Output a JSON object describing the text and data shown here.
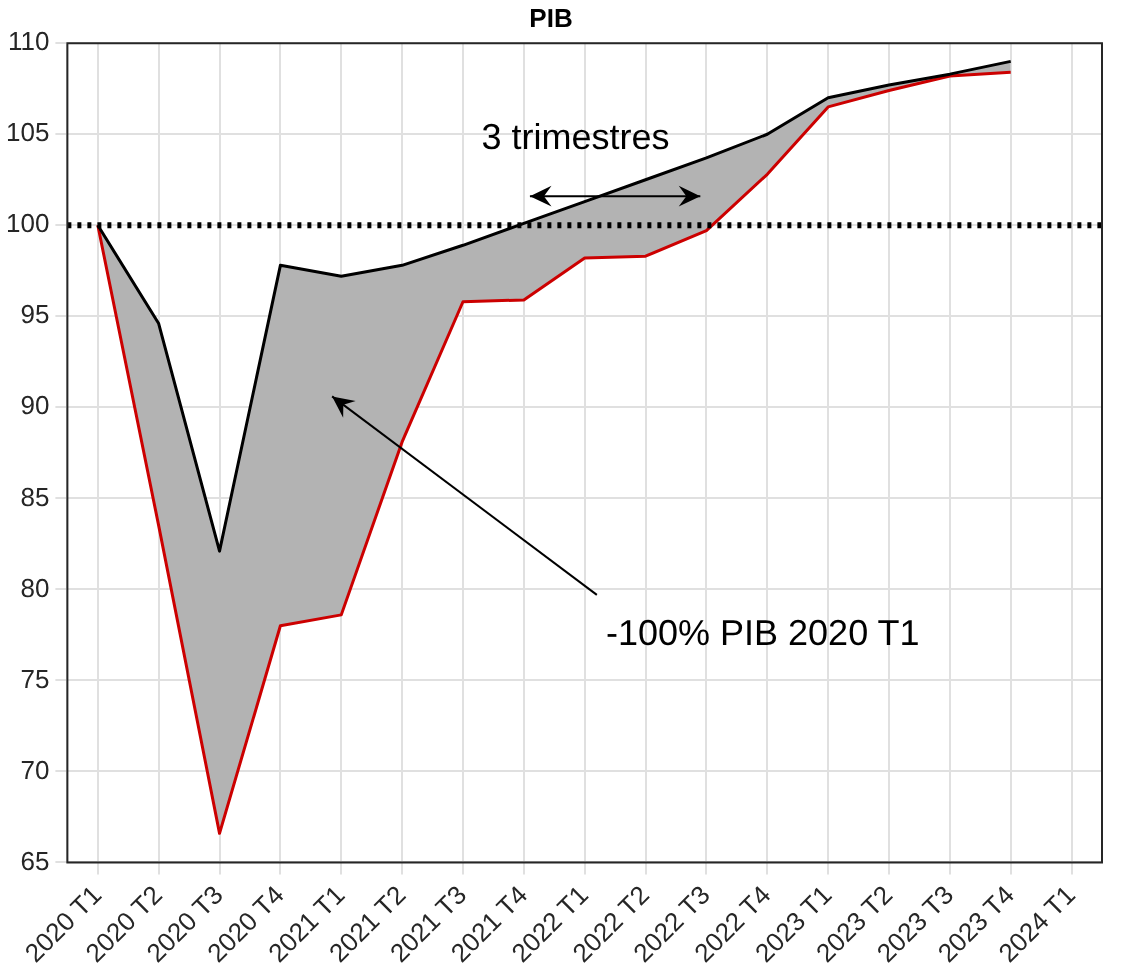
{
  "chart_data": {
    "type": "line",
    "title": "PIB",
    "categories": [
      "2020 T1",
      "2020 T2",
      "2020 T3",
      "2020 T4",
      "2021 T1",
      "2021 T2",
      "2021 T3",
      "2021 T4",
      "2022 T1",
      "2022 T2",
      "2022 T3",
      "2022 T4",
      "2023 T1",
      "2023 T2",
      "2023 T3",
      "2023 T4",
      "2024 T1"
    ],
    "series": [
      {
        "color": "#000000",
        "values": [
          100,
          94.6,
          82.1,
          97.8,
          97.2,
          97.8,
          98.9,
          100.1,
          101.3,
          102.5,
          103.7,
          105,
          107,
          107.7,
          108.3,
          109,
          null
        ],
        "upper": [
          100,
          94.6,
          82.1,
          97.8,
          97.2,
          97.8,
          98.9,
          100.1,
          101.3,
          102.5,
          103.7,
          105,
          107,
          107.7,
          108.3,
          109,
          null
        ],
        "lower": [
          100,
          83.5,
          66.6,
          78,
          78.6,
          88.1,
          95.8,
          95.9,
          98.2,
          98.3,
          99.7,
          102.8,
          106.5,
          107.4,
          108.2,
          108.4,
          null
        ]
      },
      {
        "color": "#cc0000",
        "values": [
          100,
          83.5,
          66.6,
          78,
          78.6,
          88.1,
          95.8,
          95.9,
          98.2,
          98.3,
          99.7,
          102.8,
          106.5,
          107.4,
          108.2,
          108.4,
          null
        ]
      }
    ],
    "ylim": [
      65,
      110
    ],
    "yticks": [
      65,
      70,
      75,
      80,
      85,
      90,
      95,
      100,
      105,
      110
    ],
    "grid": true,
    "legend": false,
    "marker": "none",
    "line_style": "solid",
    "ref_lines": [
      {
        "axis": "y",
        "value": 100,
        "color": "#000000",
        "line_style": "dotted"
      }
    ],
    "annotations": [
      "3 trimestres",
      "-100% PIB 2020 T1"
    ]
  }
}
